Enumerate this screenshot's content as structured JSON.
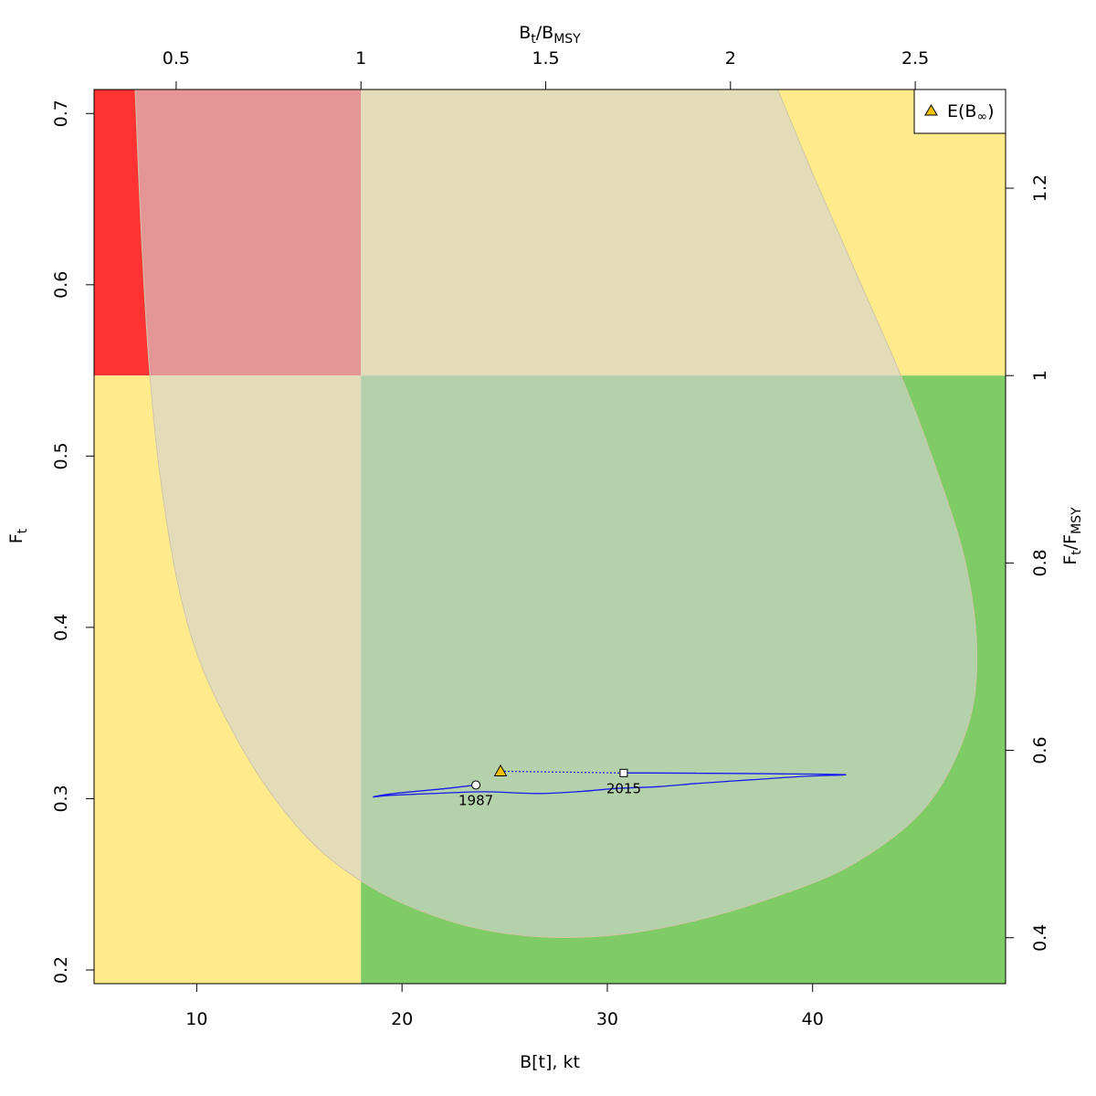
{
  "chart_data": {
    "type": "scatter",
    "xlabel": "B[t], kt",
    "ylabel": "F",
    "ylabel_sub": "t",
    "top_xlabel": {
      "base": "B",
      "sub1": "t",
      "sep": "/B",
      "sub2": "MSY"
    },
    "right_ylabel": {
      "base": "F",
      "sub1": "t",
      "sep": "/F",
      "sub2": "MSY"
    },
    "xlim": [
      5,
      49.4
    ],
    "ylim": [
      0.192,
      0.714
    ],
    "x_ticks": [
      10,
      20,
      30,
      40
    ],
    "y_ticks": [
      0.2,
      0.3,
      0.4,
      0.5,
      0.6,
      0.7
    ],
    "top_ticks": [
      0.5,
      1,
      1.5,
      2,
      2.5
    ],
    "right_ticks": [
      0.4,
      0.6,
      0.8,
      1,
      1.2
    ],
    "top_tick_labels": [
      "0.5",
      "1",
      "1.5",
      "2",
      "2.5"
    ],
    "right_tick_labels": [
      "0.4",
      "0.6",
      "0.8",
      "1",
      "1.2"
    ],
    "x_tick_labels": [
      "10",
      "20",
      "30",
      "40"
    ],
    "y_tick_labels": [
      "0.2",
      "0.3",
      "0.4",
      "0.5",
      "0.6",
      "0.7"
    ],
    "Bmsy": 18.0,
    "Fmsy": 0.547,
    "quadrant_colors": {
      "top_left": "#ff3333",
      "top_right": "#ffeb8c",
      "bottom_left": "#ffeb8c",
      "bottom_right": "#7fcc66",
      "region": "#d3d3d3",
      "trajectory": "#1a1aee"
    },
    "confidence_region": [
      [
        7.0,
        0.714
      ],
      [
        7.3,
        0.63
      ],
      [
        7.7,
        0.55
      ],
      [
        8.2,
        0.49
      ],
      [
        9.0,
        0.43
      ],
      [
        10.0,
        0.385
      ],
      [
        11.5,
        0.345
      ],
      [
        13.5,
        0.305
      ],
      [
        16.0,
        0.27
      ],
      [
        19.0,
        0.245
      ],
      [
        22.5,
        0.228
      ],
      [
        26.0,
        0.22
      ],
      [
        30.0,
        0.22
      ],
      [
        34.0,
        0.228
      ],
      [
        38.0,
        0.242
      ],
      [
        42.0,
        0.262
      ],
      [
        45.5,
        0.295
      ],
      [
        47.5,
        0.34
      ],
      [
        48.0,
        0.385
      ],
      [
        47.4,
        0.44
      ],
      [
        45.8,
        0.5
      ],
      [
        44.3,
        0.547
      ],
      [
        42.0,
        0.61
      ],
      [
        40.0,
        0.665
      ],
      [
        38.3,
        0.714
      ]
    ],
    "trajectory": [
      [
        23.6,
        0.308
      ],
      [
        22.2,
        0.306
      ],
      [
        19.6,
        0.303
      ],
      [
        18.6,
        0.301
      ],
      [
        19.5,
        0.302
      ],
      [
        21.5,
        0.303
      ],
      [
        24.0,
        0.304
      ],
      [
        26.5,
        0.303
      ],
      [
        28.5,
        0.304
      ],
      [
        30.5,
        0.306
      ],
      [
        32.5,
        0.307
      ],
      [
        34.5,
        0.309
      ],
      [
        37.0,
        0.311
      ],
      [
        39.5,
        0.313
      ],
      [
        41.6,
        0.314
      ],
      [
        38.5,
        0.3145
      ],
      [
        35.0,
        0.3148
      ],
      [
        32.0,
        0.315
      ],
      [
        30.8,
        0.315
      ]
    ],
    "start_point": {
      "x": 23.6,
      "y": 0.308,
      "label": "1987"
    },
    "end_point": {
      "x": 30.8,
      "y": 0.315,
      "label": "2015"
    },
    "predicted": {
      "x": 24.8,
      "y": 0.316
    },
    "legend": {
      "position": "top-right",
      "symbol": "triangle",
      "label": "E(B",
      "label_sub": "∞",
      "label_end": ")"
    }
  }
}
